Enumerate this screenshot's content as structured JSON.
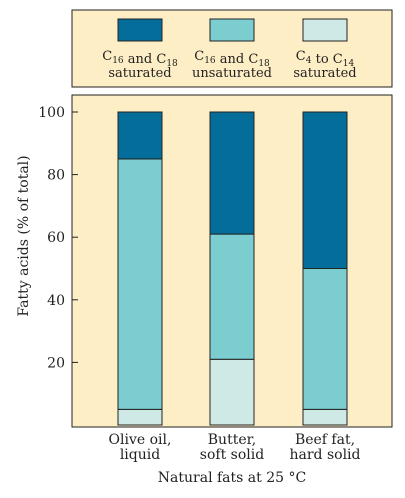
{
  "chart_data": {
    "type": "bar",
    "stacked": true,
    "title": "",
    "xlabel": "Natural fats at 25 °C",
    "ylabel": "Fatty acids (% of total)",
    "ylim": [
      0,
      100
    ],
    "yticks": [
      20,
      40,
      60,
      80,
      100
    ],
    "grid": false,
    "legend_position": "top",
    "background_color": "#fdeec5",
    "categories": [
      {
        "line1": "Olive oil,",
        "line2": "liquid"
      },
      {
        "line1": "Butter,",
        "line2": "soft solid"
      },
      {
        "line1": "Beef fat,",
        "line2": "hard solid"
      }
    ],
    "series": [
      {
        "legend_line1": "C4 to C14",
        "legend_line2": "saturated",
        "color": "#cfe9e6",
        "values": [
          5,
          21,
          5
        ]
      },
      {
        "legend_line1": "C16 and C18",
        "legend_line2": "unsaturated",
        "color": "#7bcdd0",
        "values": [
          80,
          40,
          45
        ]
      },
      {
        "legend_line1": "C16 and C18",
        "legend_line2": "saturated",
        "color": "#046d9a",
        "values": [
          15,
          39,
          50
        ]
      }
    ]
  }
}
